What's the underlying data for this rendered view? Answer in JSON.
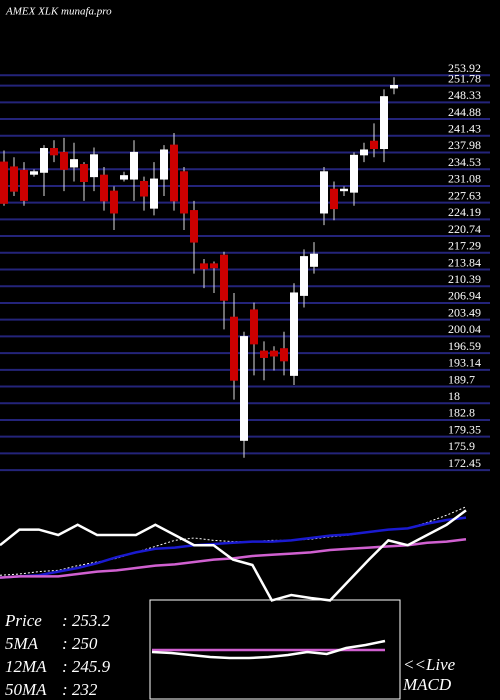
{
  "header": {
    "title": "AMEX  XLK munafa.pro"
  },
  "stats": [
    {
      "label": "Price",
      "value": ": 253.2"
    },
    {
      "label": "5MA",
      "value": ": 250"
    },
    {
      "label": "12MA",
      "value": ": 245.9"
    },
    {
      "label": "50MA",
      "value": ": 232"
    }
  ],
  "macd_link": {
    "line1": "<<Live",
    "line2": "MACD"
  },
  "chart_data": [
    {
      "type": "candlestick",
      "up_color": "#ffffff",
      "down_color": "#cc0000",
      "grid_color": "#24247a",
      "open": [
        236,
        235,
        234.3,
        233.5,
        233.9,
        238.8,
        238,
        235,
        235.5,
        233,
        233.3,
        230,
        232.5,
        232.5,
        232,
        226.5,
        232.5,
        239.5,
        234,
        226,
        215,
        215,
        216.8,
        204,
        178.6,
        205.5,
        197,
        197,
        197.5,
        192,
        208.5,
        214.5,
        225.5,
        230.4,
        230.1,
        229.8,
        237.5,
        240.3,
        238.8,
        251.3
      ],
      "high": [
        238.4,
        237,
        236,
        234.5,
        239.5,
        240.5,
        241,
        240,
        236,
        239,
        235,
        231,
        234,
        240.5,
        233,
        236,
        239.5,
        242,
        235,
        228,
        216,
        215.5,
        217.5,
        209,
        201,
        207,
        199,
        198,
        201,
        211,
        218,
        219.5,
        235,
        232,
        231,
        238,
        240,
        244,
        251,
        253.5
      ],
      "low": [
        227,
        229,
        227,
        233,
        229,
        236,
        230,
        232,
        228,
        230,
        226,
        222,
        232,
        228,
        226,
        225,
        229,
        226,
        222,
        213,
        210,
        209,
        201.5,
        187,
        175,
        192,
        191,
        193,
        192,
        190,
        206,
        213,
        223,
        224,
        229,
        227,
        236,
        237,
        236,
        250
      ],
      "close": [
        227.5,
        230,
        228.1,
        234,
        238.8,
        237.5,
        234.5,
        236.5,
        232,
        237.5,
        228,
        225.5,
        233.2,
        238,
        229,
        232.5,
        238.5,
        228,
        225.5,
        219.5,
        214,
        214.2,
        207.5,
        191,
        200,
        198.5,
        195.7,
        196,
        195,
        209,
        216.5,
        217,
        234,
        226.4,
        230.4,
        237.4,
        238.5,
        238.8,
        249.5,
        251.8
      ],
      "ylim": [
        170,
        255
      ],
      "yticks": [
        253.92,
        251.78,
        248.33,
        244.88,
        241.43,
        237.98,
        234.53,
        231.08,
        227.63,
        224.19,
        220.74,
        217.29,
        213.84,
        210.39,
        206.94,
        203.49,
        200.04,
        196.59,
        193.14,
        189.7,
        {
          "value": 186.25,
          "label": "18"
        },
        182.8,
        179.35,
        175.9,
        172.45
      ]
    },
    {
      "type": "line",
      "ylim": [
        0,
        100
      ],
      "series": [
        {
          "color": "#ffffff",
          "dash": true,
          "values": [
            29,
            30,
            32,
            33,
            37,
            40,
            43,
            48,
            53,
            58,
            60,
            58,
            57,
            57,
            58,
            58,
            59,
            61,
            62.5,
            65,
            67,
            68,
            73,
            79,
            86
          ]
        },
        {
          "color": "#1a1ad0",
          "values": [
            27,
            28,
            29,
            32,
            35,
            39,
            44,
            48,
            51,
            52,
            54,
            55,
            56,
            57,
            57,
            58,
            60,
            62,
            63,
            65,
            67,
            68,
            72,
            75,
            77
          ]
        },
        {
          "color": "#d060d0",
          "values": [
            27,
            28,
            28,
            28,
            30,
            32,
            33,
            35,
            37,
            38,
            40,
            42,
            43,
            45,
            46,
            47,
            48,
            50,
            51,
            52,
            53,
            54,
            56,
            57,
            59
          ]
        },
        {
          "color": "#ffffff",
          "values": [
            54,
            67,
            67,
            62.5,
            71,
            62.5,
            62.5,
            62.5,
            71,
            62.5,
            54,
            54,
            42,
            37.5,
            8,
            12.5,
            10,
            8,
            25,
            42,
            58,
            54,
            62.5,
            71,
            83
          ]
        }
      ]
    },
    {
      "type": "line",
      "ylim": [
        -10,
        10
      ],
      "series": [
        {
          "color": "#d060d0",
          "values": [
            0,
            0
          ]
        },
        {
          "color": "#ffffff",
          "values": [
            -0.4,
            -0.6,
            -1,
            -1.4,
            -1.6,
            -1.6,
            -1.4,
            -1,
            -0.4,
            -0.8,
            0.4,
            1,
            1.8
          ]
        }
      ]
    }
  ]
}
